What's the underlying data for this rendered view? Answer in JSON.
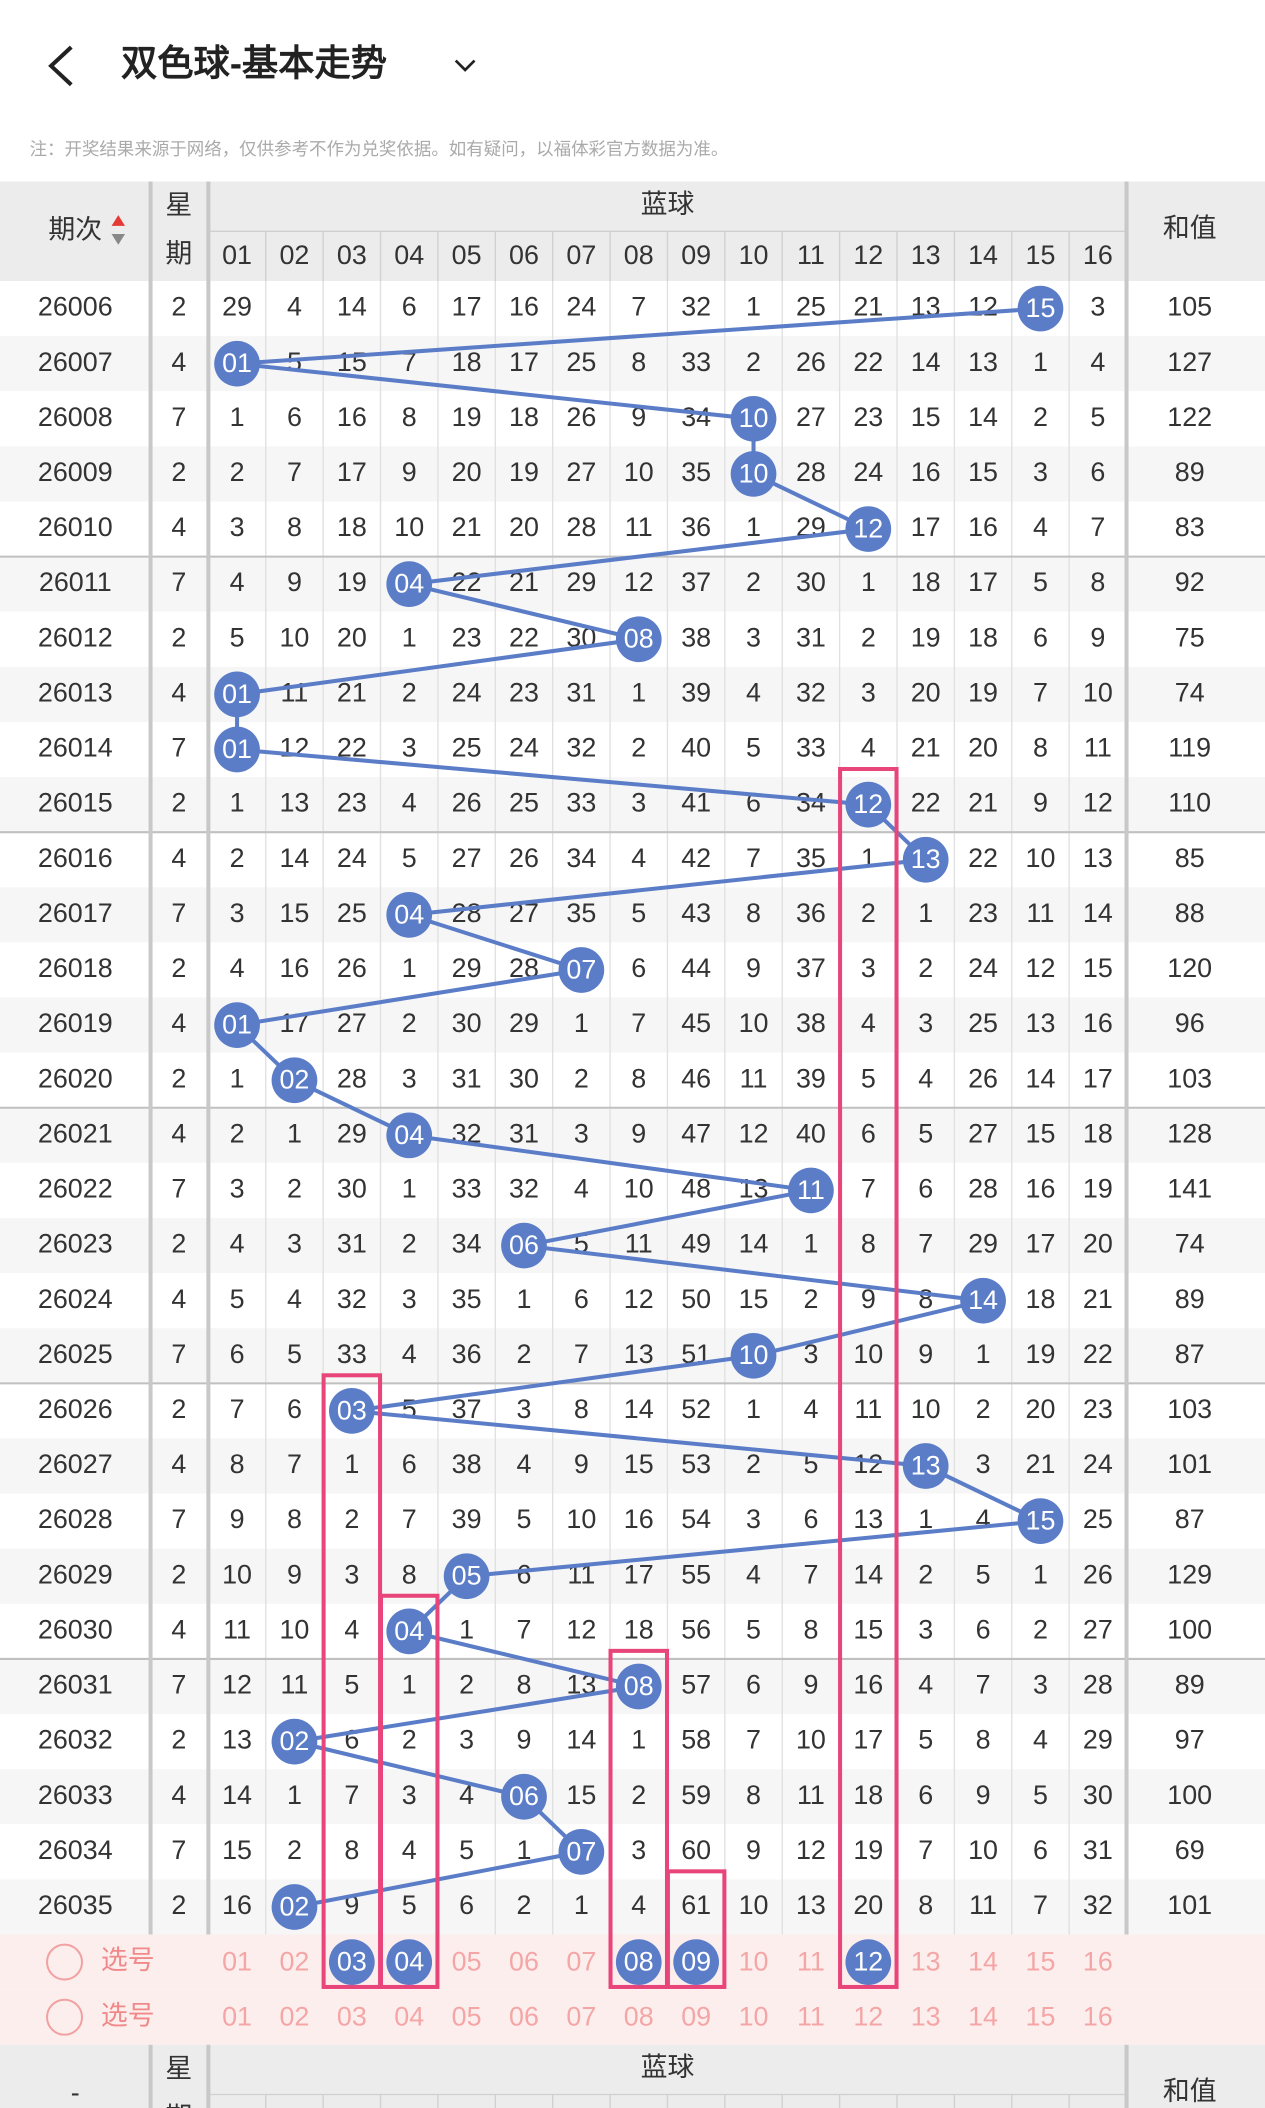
{
  "header": {
    "title": "双色球-基本走势",
    "note": "注：开奖结果来源于网络，仅供参考不作为兑奖依据。如有疑问，以福体彩官方数据为准。"
  },
  "table": {
    "period_label": "期次",
    "weekday_label": [
      "星",
      "期"
    ],
    "group_label": "蓝球",
    "sum_label": "和值",
    "columns": [
      "01",
      "02",
      "03",
      "04",
      "05",
      "06",
      "07",
      "08",
      "09",
      "10",
      "11",
      "12",
      "13",
      "14",
      "15",
      "16"
    ],
    "rows": [
      {
        "period": 26006,
        "weekday": 2,
        "cells": [
          29,
          4,
          14,
          6,
          17,
          16,
          24,
          7,
          32,
          1,
          25,
          21,
          13,
          12,
          "15",
          3
        ],
        "sum": 105
      },
      {
        "period": 26007,
        "weekday": 4,
        "cells": [
          "01",
          5,
          15,
          7,
          18,
          17,
          25,
          8,
          33,
          2,
          26,
          22,
          14,
          13,
          1,
          4
        ],
        "sum": 127
      },
      {
        "period": 26008,
        "weekday": 7,
        "cells": [
          1,
          6,
          16,
          8,
          19,
          18,
          26,
          9,
          34,
          "10",
          27,
          23,
          15,
          14,
          2,
          5
        ],
        "sum": 122
      },
      {
        "period": 26009,
        "weekday": 2,
        "cells": [
          2,
          7,
          17,
          9,
          20,
          19,
          27,
          10,
          35,
          "10",
          28,
          24,
          16,
          15,
          3,
          6
        ],
        "sum": 89
      },
      {
        "period": 26010,
        "weekday": 4,
        "cells": [
          3,
          8,
          18,
          10,
          21,
          20,
          28,
          11,
          36,
          1,
          29,
          "12",
          17,
          16,
          4,
          7
        ],
        "sum": 83
      },
      {
        "period": 26011,
        "weekday": 7,
        "cells": [
          4,
          9,
          19,
          "04",
          22,
          21,
          29,
          12,
          37,
          2,
          30,
          1,
          18,
          17,
          5,
          8
        ],
        "sum": 92
      },
      {
        "period": 26012,
        "weekday": 2,
        "cells": [
          5,
          10,
          20,
          1,
          23,
          22,
          30,
          "08",
          38,
          3,
          31,
          2,
          19,
          18,
          6,
          9
        ],
        "sum": 75
      },
      {
        "period": 26013,
        "weekday": 4,
        "cells": [
          "01",
          11,
          21,
          2,
          24,
          23,
          31,
          1,
          39,
          4,
          32,
          3,
          20,
          19,
          7,
          10
        ],
        "sum": 74
      },
      {
        "period": 26014,
        "weekday": 7,
        "cells": [
          "01",
          12,
          22,
          3,
          25,
          24,
          32,
          2,
          40,
          5,
          33,
          4,
          21,
          20,
          8,
          11
        ],
        "sum": 119
      },
      {
        "period": 26015,
        "weekday": 2,
        "cells": [
          1,
          13,
          23,
          4,
          26,
          25,
          33,
          3,
          41,
          6,
          34,
          "12",
          22,
          21,
          9,
          12
        ],
        "sum": 110
      },
      {
        "period": 26016,
        "weekday": 4,
        "cells": [
          2,
          14,
          24,
          5,
          27,
          26,
          34,
          4,
          42,
          7,
          35,
          1,
          "13",
          22,
          10,
          13
        ],
        "sum": 85
      },
      {
        "period": 26017,
        "weekday": 7,
        "cells": [
          3,
          15,
          25,
          "04",
          28,
          27,
          35,
          5,
          43,
          8,
          36,
          2,
          1,
          23,
          11,
          14
        ],
        "sum": 88
      },
      {
        "period": 26018,
        "weekday": 2,
        "cells": [
          4,
          16,
          26,
          1,
          29,
          28,
          "07",
          6,
          44,
          9,
          37,
          3,
          2,
          24,
          12,
          15
        ],
        "sum": 120
      },
      {
        "period": 26019,
        "weekday": 4,
        "cells": [
          "01",
          17,
          27,
          2,
          30,
          29,
          1,
          7,
          45,
          10,
          38,
          4,
          3,
          25,
          13,
          16
        ],
        "sum": 96
      },
      {
        "period": 26020,
        "weekday": 2,
        "cells": [
          1,
          "02",
          28,
          3,
          31,
          30,
          2,
          8,
          46,
          11,
          39,
          5,
          4,
          26,
          14,
          17
        ],
        "sum": 103
      },
      {
        "period": 26021,
        "weekday": 4,
        "cells": [
          2,
          1,
          29,
          "04",
          32,
          31,
          3,
          9,
          47,
          12,
          40,
          6,
          5,
          27,
          15,
          18
        ],
        "sum": 128
      },
      {
        "period": 26022,
        "weekday": 7,
        "cells": [
          3,
          2,
          30,
          1,
          33,
          32,
          4,
          10,
          48,
          13,
          "11",
          7,
          6,
          28,
          16,
          19
        ],
        "sum": 141
      },
      {
        "period": 26023,
        "weekday": 2,
        "cells": [
          4,
          3,
          31,
          2,
          34,
          "06",
          5,
          11,
          49,
          14,
          1,
          8,
          7,
          29,
          17,
          20
        ],
        "sum": 74
      },
      {
        "period": 26024,
        "weekday": 4,
        "cells": [
          5,
          4,
          32,
          3,
          35,
          1,
          6,
          12,
          50,
          15,
          2,
          9,
          8,
          "14",
          18,
          21
        ],
        "sum": 89
      },
      {
        "period": 26025,
        "weekday": 7,
        "cells": [
          6,
          5,
          33,
          4,
          36,
          2,
          7,
          13,
          51,
          "10",
          3,
          10,
          9,
          1,
          19,
          22
        ],
        "sum": 87
      },
      {
        "period": 26026,
        "weekday": 2,
        "cells": [
          7,
          6,
          "03",
          5,
          37,
          3,
          8,
          14,
          52,
          1,
          4,
          11,
          10,
          2,
          20,
          23
        ],
        "sum": 103
      },
      {
        "period": 26027,
        "weekday": 4,
        "cells": [
          8,
          7,
          1,
          6,
          38,
          4,
          9,
          15,
          53,
          2,
          5,
          12,
          "13",
          3,
          21,
          24
        ],
        "sum": 101
      },
      {
        "period": 26028,
        "weekday": 7,
        "cells": [
          9,
          8,
          2,
          7,
          39,
          5,
          10,
          16,
          54,
          3,
          6,
          13,
          1,
          4,
          "15",
          25
        ],
        "sum": 87
      },
      {
        "period": 26029,
        "weekday": 2,
        "cells": [
          10,
          9,
          3,
          8,
          "05",
          6,
          11,
          17,
          55,
          4,
          7,
          14,
          2,
          5,
          1,
          26
        ],
        "sum": 129
      },
      {
        "period": 26030,
        "weekday": 4,
        "cells": [
          11,
          10,
          4,
          "04",
          1,
          7,
          12,
          18,
          56,
          5,
          8,
          15,
          3,
          6,
          2,
          27
        ],
        "sum": 100
      },
      {
        "period": 26031,
        "weekday": 7,
        "cells": [
          12,
          11,
          5,
          1,
          2,
          8,
          13,
          "08",
          57,
          6,
          9,
          16,
          4,
          7,
          3,
          28
        ],
        "sum": 89
      },
      {
        "period": 26032,
        "weekday": 2,
        "cells": [
          13,
          "02",
          6,
          2,
          3,
          9,
          14,
          1,
          58,
          7,
          10,
          17,
          5,
          8,
          4,
          29
        ],
        "sum": 97
      },
      {
        "period": 26033,
        "weekday": 4,
        "cells": [
          14,
          1,
          7,
          3,
          4,
          "06",
          15,
          2,
          59,
          8,
          11,
          18,
          6,
          9,
          5,
          30
        ],
        "sum": 100
      },
      {
        "period": 26034,
        "weekday": 7,
        "cells": [
          15,
          2,
          8,
          4,
          5,
          1,
          "07",
          3,
          60,
          9,
          12,
          19,
          7,
          10,
          6,
          31
        ],
        "sum": 69
      },
      {
        "period": 26035,
        "weekday": 2,
        "cells": [
          16,
          "02",
          9,
          5,
          6,
          2,
          1,
          4,
          61,
          10,
          13,
          20,
          8,
          11,
          7,
          32
        ],
        "sum": 101
      }
    ],
    "select_rows": [
      {
        "label": "选号",
        "numbers": [
          {
            "text": "01"
          },
          {
            "text": "02"
          },
          {
            "text": "03",
            "selected": true
          },
          {
            "text": "04",
            "selected": true
          },
          {
            "text": "05"
          },
          {
            "text": "06"
          },
          {
            "text": "07"
          },
          {
            "text": "08",
            "selected": true
          },
          {
            "text": "09",
            "selected": true
          },
          {
            "text": "10"
          },
          {
            "text": "11"
          },
          {
            "text": "12",
            "selected": true
          },
          {
            "text": "13"
          },
          {
            "text": "14"
          },
          {
            "text": "15"
          },
          {
            "text": "16"
          }
        ]
      },
      {
        "label": "选号",
        "numbers": [
          {
            "text": "01"
          },
          {
            "text": "02"
          },
          {
            "text": "03"
          },
          {
            "text": "04"
          },
          {
            "text": "05"
          },
          {
            "text": "06"
          },
          {
            "text": "07"
          },
          {
            "text": "08"
          },
          {
            "text": "09"
          },
          {
            "text": "10"
          },
          {
            "text": "11"
          },
          {
            "text": "12"
          },
          {
            "text": "13"
          },
          {
            "text": "14"
          },
          {
            "text": "15"
          },
          {
            "text": "16"
          }
        ]
      }
    ],
    "footer_header": {
      "period_label": "-",
      "weekday_label": [
        "星",
        "期"
      ],
      "group_label": "蓝球",
      "sum_label": "和值"
    }
  }
}
